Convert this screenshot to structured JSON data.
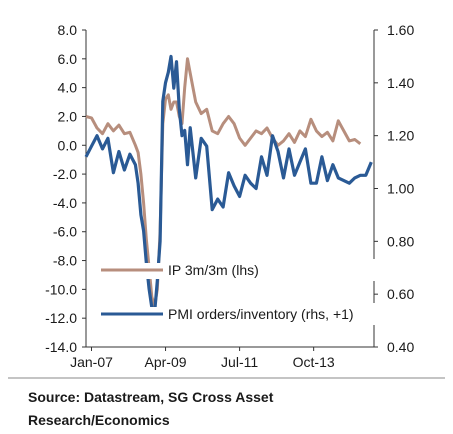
{
  "chart_data": {
    "type": "line",
    "x_ticks": [
      "Jan-07",
      "Apr-09",
      "Jul-11",
      "Oct-13"
    ],
    "x_range": [
      "2006-11",
      "2015-08"
    ],
    "left_axis": {
      "range": [
        -14,
        8
      ],
      "ticks": [
        "8.0",
        "6.0",
        "4.0",
        "2.0",
        "0.0",
        "-2.0",
        "-4.0",
        "-6.0",
        "-8.0",
        "-10.0",
        "-12.0",
        "-14.0"
      ]
    },
    "right_axis": {
      "range": [
        0.4,
        1.6
      ],
      "ticks": [
        "1.60",
        "1.40",
        "1.20",
        "1.00",
        "0.80",
        "0.60",
        "0.40"
      ]
    },
    "grid": false,
    "legend_position": "bottom-left",
    "series": [
      {
        "name": "IP 3m/3m (lhs)",
        "axis": "left",
        "color": "#b78e7d",
        "x": [
          "2006-11",
          "2007-01",
          "2007-03",
          "2007-05",
          "2007-07",
          "2007-09",
          "2007-11",
          "2008-01",
          "2008-03",
          "2008-05",
          "2008-06",
          "2008-07",
          "2008-08",
          "2008-09",
          "2008-10",
          "2008-11",
          "2008-12",
          "2009-01",
          "2009-02",
          "2009-03",
          "2009-04",
          "2009-05",
          "2009-06",
          "2009-07",
          "2009-08",
          "2009-09",
          "2009-10",
          "2009-11",
          "2009-12",
          "2010-01",
          "2010-03",
          "2010-05",
          "2010-07",
          "2010-09",
          "2010-11",
          "2011-01",
          "2011-03",
          "2011-05",
          "2011-07",
          "2011-09",
          "2011-11",
          "2012-01",
          "2012-03",
          "2012-05",
          "2012-07",
          "2012-09",
          "2012-11",
          "2013-01",
          "2013-03",
          "2013-05",
          "2013-07",
          "2013-09",
          "2013-11",
          "2014-01",
          "2014-03",
          "2014-05",
          "2014-07",
          "2014-09",
          "2014-11",
          "2015-01",
          "2015-03"
        ],
        "values": [
          2.0,
          1.9,
          1.2,
          0.8,
          1.5,
          1.0,
          1.4,
          0.8,
          0.9,
          0.0,
          -0.5,
          -2.0,
          -4.0,
          -6.5,
          -8.5,
          -10.5,
          -11.2,
          -10.0,
          -6.0,
          1.5,
          3.2,
          3.5,
          2.5,
          3.0,
          3.0,
          2.0,
          1.5,
          4.0,
          6.0,
          5.0,
          3.0,
          2.2,
          2.5,
          1.0,
          0.8,
          1.5,
          2.0,
          1.5,
          0.5,
          0.0,
          0.5,
          1.0,
          0.8,
          1.2,
          0.5,
          0.0,
          0.3,
          0.8,
          0.2,
          1.0,
          0.6,
          1.8,
          1.0,
          0.6,
          0.9,
          0.3,
          1.7,
          1.0,
          0.3,
          0.4,
          0.1
        ]
      },
      {
        "name": "PMI orders/inventory (rhs, +1)",
        "axis": "right",
        "color": "#2a5a95",
        "x": [
          "2006-11",
          "2007-01",
          "2007-03",
          "2007-05",
          "2007-07",
          "2007-09",
          "2007-11",
          "2008-01",
          "2008-03",
          "2008-05",
          "2008-06",
          "2008-07",
          "2008-08",
          "2008-09",
          "2008-10",
          "2008-11",
          "2008-12",
          "2009-01",
          "2009-02",
          "2009-03",
          "2009-04",
          "2009-05",
          "2009-06",
          "2009-07",
          "2009-08",
          "2009-09",
          "2009-10",
          "2009-11",
          "2009-12",
          "2010-01",
          "2010-03",
          "2010-05",
          "2010-07",
          "2010-09",
          "2010-11",
          "2011-01",
          "2011-03",
          "2011-05",
          "2011-07",
          "2011-09",
          "2011-11",
          "2012-01",
          "2012-03",
          "2012-05",
          "2012-07",
          "2012-09",
          "2012-11",
          "2013-01",
          "2013-03",
          "2013-05",
          "2013-07",
          "2013-09",
          "2013-11",
          "2014-01",
          "2014-03",
          "2014-05",
          "2014-07",
          "2014-09",
          "2014-11",
          "2015-01",
          "2015-03",
          "2015-05",
          "2015-07"
        ],
        "values": [
          1.12,
          1.16,
          1.2,
          1.15,
          1.19,
          1.06,
          1.14,
          1.07,
          1.13,
          1.09,
          1.02,
          0.9,
          0.84,
          0.72,
          0.62,
          0.55,
          0.53,
          0.65,
          0.8,
          1.33,
          1.4,
          1.44,
          1.5,
          1.38,
          1.48,
          1.3,
          1.2,
          1.22,
          1.09,
          1.23,
          1.04,
          1.19,
          1.16,
          0.92,
          0.96,
          0.93,
          1.06,
          1.01,
          0.97,
          1.05,
          1.02,
          1.0,
          1.12,
          1.05,
          1.2,
          1.14,
          1.04,
          1.15,
          1.05,
          1.1,
          1.15,
          1.02,
          1.02,
          1.12,
          1.03,
          1.09,
          1.04,
          1.03,
          1.02,
          1.04,
          1.05,
          1.05,
          1.1
        ]
      }
    ]
  },
  "source": {
    "line1": "Source: Datastream, SG Cross Asset",
    "line2": "Research/Economics"
  }
}
